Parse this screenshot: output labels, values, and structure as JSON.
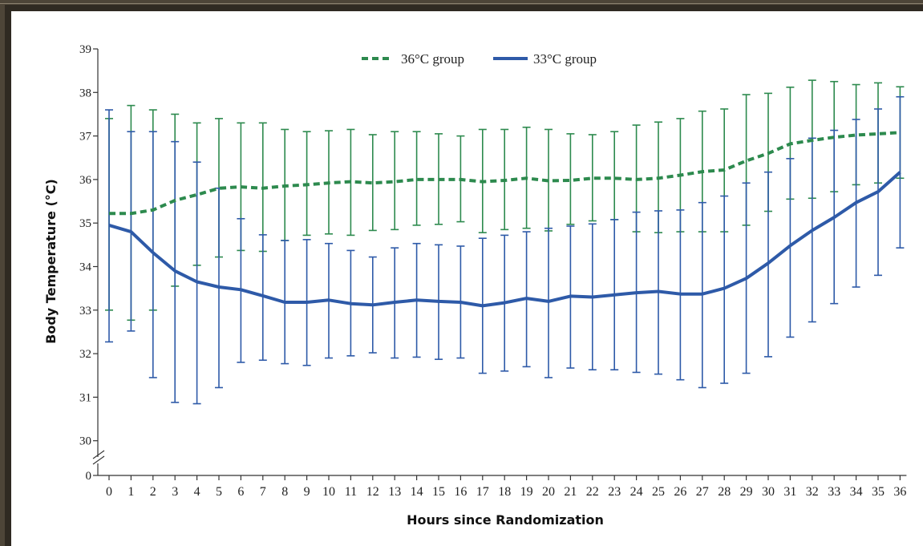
{
  "colors": {
    "group36": "#2d8a4e",
    "group33": "#2e5aa8"
  },
  "chart_data": {
    "type": "line",
    "xlabel": "Hours since Randomization",
    "ylabel": "Body Temperature (°C)",
    "x": [
      0,
      1,
      2,
      3,
      4,
      5,
      6,
      7,
      8,
      9,
      10,
      11,
      12,
      13,
      14,
      15,
      16,
      17,
      18,
      19,
      20,
      21,
      22,
      23,
      24,
      25,
      26,
      27,
      28,
      29,
      30,
      31,
      32,
      33,
      34,
      35,
      36
    ],
    "ylim": [
      30,
      39
    ],
    "axis_break": true,
    "y_ticks": [
      "0",
      "30",
      "31",
      "32",
      "33",
      "34",
      "35",
      "36",
      "37",
      "38",
      "39"
    ],
    "x_ticks": [
      "0",
      "1",
      "2",
      "3",
      "4",
      "5",
      "6",
      "7",
      "8",
      "9",
      "10",
      "11",
      "12",
      "13",
      "14",
      "15",
      "16",
      "17",
      "18",
      "19",
      "20",
      "21",
      "22",
      "23",
      "24",
      "25",
      "26",
      "27",
      "28",
      "29",
      "30",
      "31",
      "32",
      "33",
      "34",
      "35",
      "36"
    ],
    "legend": {
      "position": "top-center"
    },
    "series": [
      {
        "name": "36°C group",
        "style": "dashed",
        "color": "#2d8a4e",
        "values": [
          35.22,
          35.22,
          35.3,
          35.52,
          35.65,
          35.8,
          35.83,
          35.8,
          35.85,
          35.88,
          35.92,
          35.95,
          35.92,
          35.95,
          36.0,
          36.0,
          36.0,
          35.95,
          35.98,
          36.03,
          35.97,
          35.98,
          36.03,
          36.03,
          36.0,
          36.03,
          36.1,
          36.18,
          36.22,
          36.43,
          36.6,
          36.82,
          36.9,
          36.97,
          37.02,
          37.05,
          37.08
        ],
        "upper": [
          37.4,
          37.7,
          37.6,
          37.5,
          37.3,
          37.4,
          37.3,
          37.3,
          37.15,
          37.1,
          37.12,
          37.15,
          37.03,
          37.1,
          37.1,
          37.05,
          37.0,
          37.15,
          37.15,
          37.2,
          37.15,
          37.05,
          37.03,
          37.1,
          37.25,
          37.32,
          37.4,
          37.57,
          37.62,
          37.95,
          37.98,
          38.12,
          38.28,
          38.25,
          38.18,
          38.22,
          38.13
        ],
        "lower": [
          33.0,
          32.77,
          33.0,
          33.55,
          34.03,
          34.22,
          34.37,
          34.35,
          34.6,
          34.72,
          34.75,
          34.72,
          34.83,
          34.85,
          34.95,
          34.97,
          35.03,
          34.78,
          34.85,
          34.88,
          34.82,
          34.97,
          35.05,
          35.08,
          34.8,
          34.78,
          34.8,
          34.8,
          34.8,
          34.95,
          35.27,
          35.55,
          35.57,
          35.72,
          35.88,
          35.92,
          36.03
        ]
      },
      {
        "name": "33°C group",
        "style": "solid",
        "color": "#2e5aa8",
        "values": [
          34.95,
          34.8,
          34.32,
          33.9,
          33.65,
          33.53,
          33.47,
          33.33,
          33.18,
          33.18,
          33.23,
          33.15,
          33.12,
          33.18,
          33.23,
          33.2,
          33.18,
          33.1,
          33.17,
          33.27,
          33.2,
          33.32,
          33.3,
          33.35,
          33.4,
          33.43,
          33.37,
          33.37,
          33.5,
          33.73,
          34.08,
          34.48,
          34.83,
          35.13,
          35.47,
          35.72,
          36.17
        ],
        "upper": [
          37.6,
          37.1,
          37.1,
          36.87,
          36.4,
          35.8,
          35.1,
          34.73,
          34.6,
          34.62,
          34.53,
          34.37,
          34.22,
          34.43,
          34.53,
          34.5,
          34.47,
          34.65,
          34.72,
          34.8,
          34.88,
          34.93,
          34.98,
          35.08,
          35.25,
          35.28,
          35.3,
          35.47,
          35.62,
          35.92,
          36.17,
          36.48,
          36.95,
          37.13,
          37.38,
          37.62,
          37.9
        ],
        "lower": [
          32.27,
          32.52,
          31.45,
          30.88,
          30.85,
          31.22,
          31.8,
          31.85,
          31.77,
          31.73,
          31.9,
          31.95,
          32.02,
          31.9,
          31.92,
          31.87,
          31.9,
          31.55,
          31.6,
          31.7,
          31.45,
          31.67,
          31.63,
          31.63,
          31.57,
          31.53,
          31.4,
          31.22,
          31.32,
          31.55,
          31.93,
          32.38,
          32.73,
          33.15,
          33.53,
          33.8,
          34.43
        ]
      }
    ]
  }
}
